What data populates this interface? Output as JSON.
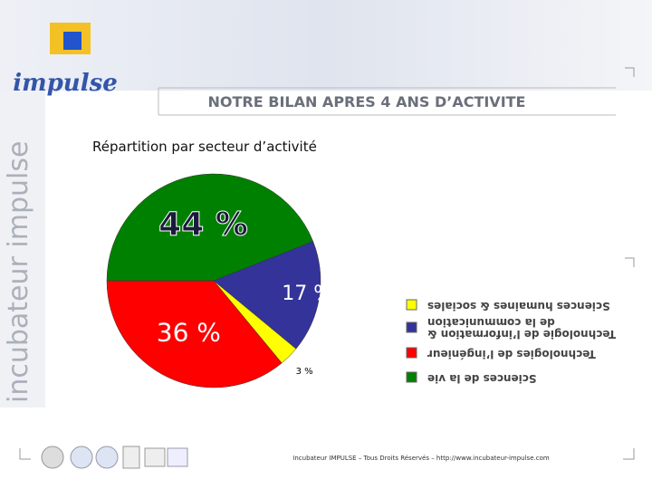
{
  "logo": "impulse",
  "side_text": "incubateur impulse",
  "header": {
    "title": "NOTRE BILAN APRES 4 ANS D’ACTIVITE"
  },
  "chart_data": {
    "type": "pie",
    "title": "Répartition par secteur d’activité",
    "categories": [
      "Sciences de la vie",
      "Technologie de l’information & de la communication",
      "Sciences humaines & sociales",
      "Technologies de l’ingénieur"
    ],
    "values": [
      44,
      17,
      3,
      36
    ],
    "value_labels": [
      "44 %",
      "17 %",
      "3 %",
      "36 %"
    ],
    "colors": [
      "#008000",
      "#333399",
      "#ffff00",
      "#ff0000"
    ]
  },
  "footer": "Incubateur IMPULSE – Tous Droits Réservés – http://www.incubateur-impulse.com"
}
